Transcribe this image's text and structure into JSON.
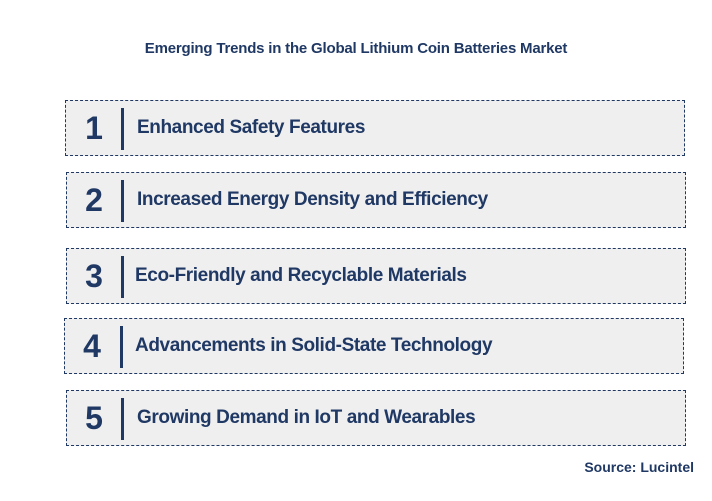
{
  "title": "Emerging Trends in the Global Lithium Coin Batteries Market",
  "trends": [
    {
      "number": "1",
      "label": "Enhanced Safety Features"
    },
    {
      "number": "2",
      "label": "Increased Energy Density and Efficiency"
    },
    {
      "number": "3",
      "label": "Eco-Friendly and Recyclable Materials"
    },
    {
      "number": "4",
      "label": "Advancements in Solid-State Technology"
    },
    {
      "number": "5",
      "label": "Growing Demand in IoT and Wearables"
    }
  ],
  "source": "Source: Lucintel",
  "colors": {
    "text": "#1f3864",
    "box_fill": "#efefef",
    "border": "#1f3864"
  }
}
